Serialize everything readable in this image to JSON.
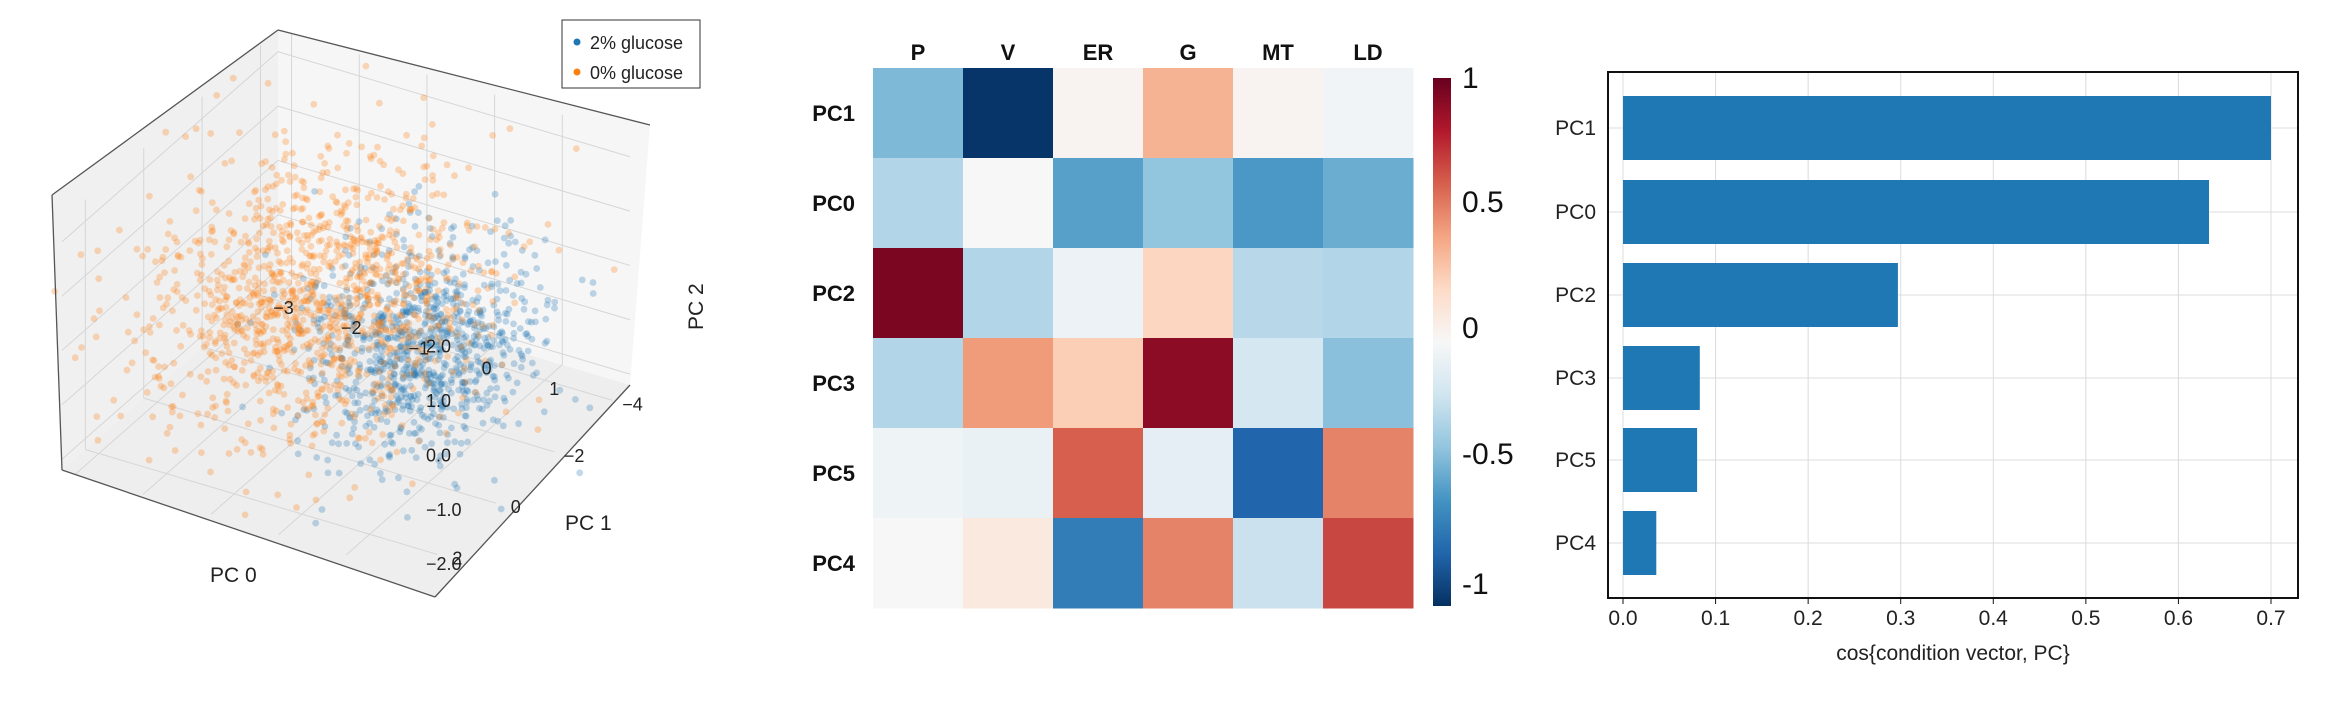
{
  "chart_data": [
    {
      "type": "scatter",
      "projection": "3d",
      "legend_position": "top-right",
      "xlabel": "PC 0",
      "ylabel": "PC 1",
      "zlabel": "PC 2",
      "xticks": [
        "−3",
        "−2",
        "−1",
        "0",
        "1"
      ],
      "yticks": [
        "2",
        "0",
        "−2",
        "−4"
      ],
      "zticks": [
        "2.0",
        "1.0",
        "0.0",
        "−1.0",
        "−2.0"
      ],
      "xlim": [
        -3.2,
        2
      ],
      "ylim": [
        -4.6,
        2.8
      ],
      "zlim": [
        -2.2,
        2.4
      ],
      "series": [
        {
          "name": "2% glucose",
          "color": "#1f77b4",
          "center": [
            0.9,
            0.0,
            0.2
          ],
          "spread": [
            0.7,
            1.2,
            0.8
          ],
          "count": 900
        },
        {
          "name": "0% glucose",
          "color": "#ff7f0e",
          "center": [
            -0.8,
            -0.4,
            0.3
          ],
          "spread": [
            1.0,
            1.6,
            1.0
          ],
          "count": 1200
        }
      ]
    },
    {
      "type": "heatmap",
      "columns": [
        "P",
        "V",
        "ER",
        "G",
        "MT",
        "LD"
      ],
      "rows": [
        "PC1",
        "PC0",
        "PC2",
        "PC3",
        "PC5",
        "PC4"
      ],
      "values": [
        [
          -0.45,
          -0.98,
          0.03,
          0.35,
          0.03,
          -0.03
        ],
        [
          -0.3,
          0.0,
          -0.55,
          -0.4,
          -0.58,
          -0.5
        ],
        [
          0.95,
          -0.3,
          -0.06,
          0.22,
          -0.28,
          -0.3
        ],
        [
          -0.3,
          0.43,
          0.25,
          0.9,
          -0.18,
          -0.42
        ],
        [
          -0.05,
          -0.07,
          0.6,
          -0.1,
          -0.8,
          0.5
        ],
        [
          0.0,
          0.1,
          -0.7,
          0.5,
          -0.22,
          0.67
        ]
      ],
      "colorbar": {
        "range": [
          -1,
          1
        ],
        "ticks": [
          "1",
          "0.5",
          "0",
          "-0.5",
          "-1"
        ]
      }
    },
    {
      "type": "bar",
      "orientation": "horizontal",
      "categories": [
        "PC1",
        "PC0",
        "PC2",
        "PC3",
        "PC5",
        "PC4"
      ],
      "values": [
        0.7,
        0.633,
        0.297,
        0.083,
        0.08,
        0.036
      ],
      "xlabel": "cos{condition vector, PC}",
      "xlim": [
        0,
        0.73
      ],
      "xticks": [
        "0.0",
        "0.1",
        "0.2",
        "0.3",
        "0.4",
        "0.5",
        "0.6",
        "0.7"
      ],
      "grid": true,
      "color": "#1f77b4"
    }
  ]
}
